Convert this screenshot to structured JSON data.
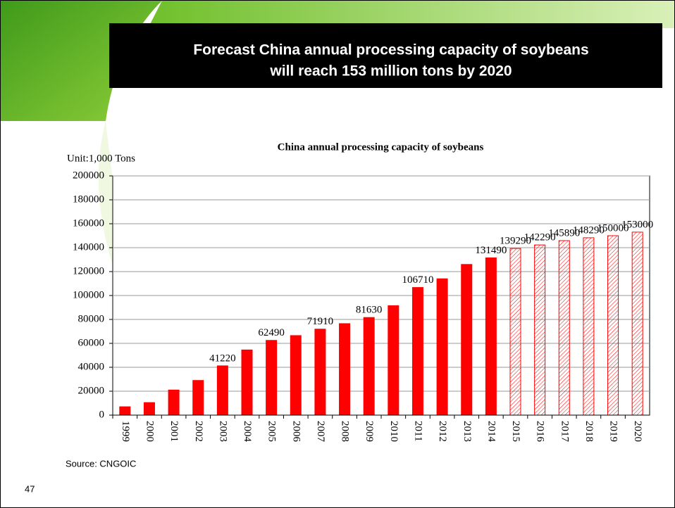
{
  "slide": {
    "title": [
      "Forecast China annual processing capacity of soybeans",
      "will reach 153 million tons by 2020"
    ],
    "source": "Source: CNGOIC",
    "page_number": "47"
  },
  "chart_data": {
    "type": "bar",
    "title": "China annual processing capacity of soybeans",
    "y_label": "Unit:1,000 Tons",
    "categories": [
      "1999",
      "2000",
      "2001",
      "2002",
      "2003",
      "2004",
      "2005",
      "2006",
      "2007",
      "2008",
      "2009",
      "2010",
      "2011",
      "2012",
      "2013",
      "2014",
      "2015",
      "2016",
      "2017",
      "2018",
      "2019",
      "2020"
    ],
    "series": [
      {
        "color": "#ff0000",
        "hatched": false,
        "values": [
          7000,
          10500,
          21000,
          29000,
          41220,
          54500,
          62490,
          66500,
          71910,
          76500,
          81630,
          91500,
          106710,
          114000,
          126000,
          131490,
          null,
          null,
          null,
          null,
          null,
          null
        ],
        "value_labels": [
          null,
          null,
          null,
          null,
          "41220",
          null,
          "62490",
          null,
          "71910",
          null,
          "81630",
          null,
          "106710",
          null,
          null,
          "131490",
          null,
          null,
          null,
          null,
          null,
          null
        ]
      },
      {
        "color": "#ff0000",
        "hatched": true,
        "values": [
          null,
          null,
          null,
          null,
          null,
          null,
          null,
          null,
          null,
          null,
          null,
          null,
          null,
          null,
          null,
          null,
          139290,
          142290,
          145890,
          148290,
          150000,
          153000
        ],
        "value_labels": [
          null,
          null,
          null,
          null,
          null,
          null,
          null,
          null,
          null,
          null,
          null,
          null,
          null,
          null,
          null,
          null,
          "139290",
          "142290",
          "145890",
          "148290",
          "150000",
          "153000"
        ]
      }
    ],
    "ylim": [
      0,
      200000
    ],
    "yticks": [
      0,
      20000,
      40000,
      60000,
      80000,
      100000,
      120000,
      140000,
      160000,
      180000,
      200000
    ],
    "grid": true
  }
}
